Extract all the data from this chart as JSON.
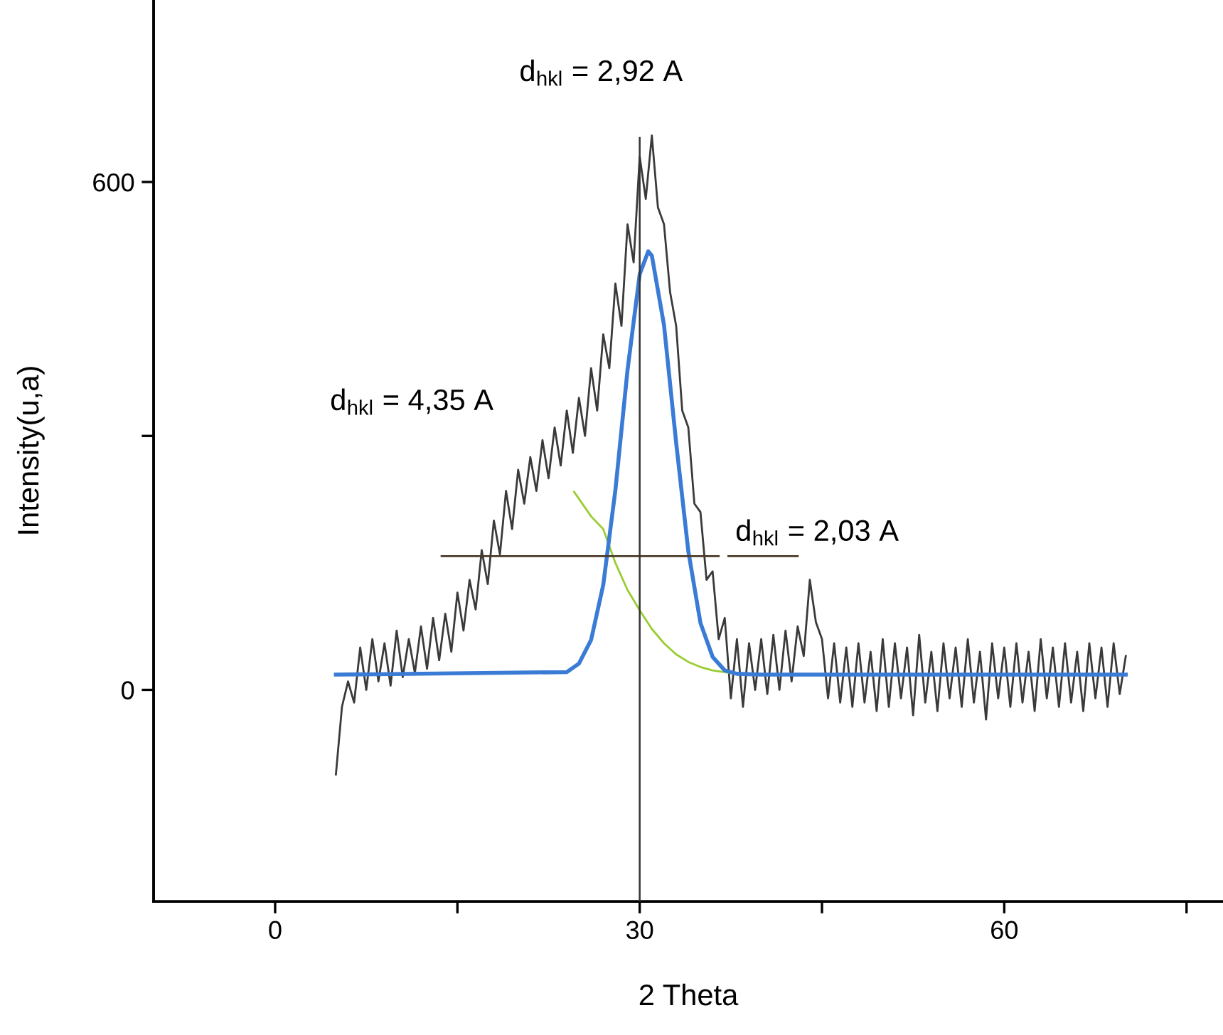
{
  "chart_data": {
    "type": "line",
    "xlabel": "2 Theta",
    "ylabel": "Intensity(u,a)",
    "xlim": [
      -10,
      78
    ],
    "ylim": [
      -250,
      815
    ],
    "xticks": [
      0,
      {
        "value": 15,
        "label": null
      },
      30,
      {
        "value": 45,
        "label": null
      },
      60,
      {
        "value": 75,
        "label": null
      }
    ],
    "yticks": [
      0,
      {
        "value": 300,
        "label": null
      },
      600
    ],
    "grid": false,
    "legend": false,
    "marker": "none",
    "line_style": "solid",
    "annotations": [
      "d$_{hkl}$ = 2,92 A",
      "d$_{hkl}$ = 4,35 A",
      "d$_{hkl}$ = 2,03 A"
    ],
    "series": [
      {
        "color": "#3a3a3a",
        "x": [
          5,
          5.5,
          6,
          6.5,
          7,
          7.5,
          8,
          8.5,
          9,
          9.5,
          10,
          10.5,
          11,
          11.5,
          12,
          12.5,
          13,
          13.5,
          14,
          14.5,
          15,
          15.5,
          16,
          16.5,
          17,
          17.5,
          18,
          18.5,
          19,
          19.5,
          20,
          20.5,
          21,
          21.5,
          22,
          22.5,
          23,
          23.5,
          24,
          24.5,
          25,
          25.5,
          26,
          26.5,
          27,
          27.5,
          28,
          28.5,
          29,
          29.5,
          30,
          30.5,
          31,
          31.5,
          32,
          32.5,
          33,
          33.5,
          34,
          34.5,
          35,
          35.5,
          36,
          36.5,
          37,
          37.5,
          38,
          38.5,
          39,
          39.5,
          40,
          40.5,
          41,
          41.5,
          42,
          42.5,
          43,
          43.5,
          44,
          44.5,
          45,
          45.5,
          46,
          46.5,
          47,
          47.5,
          48,
          48.5,
          49,
          49.5,
          50,
          50.5,
          51,
          51.5,
          52,
          52.5,
          53,
          53.5,
          54,
          54.5,
          55,
          55.5,
          56,
          56.5,
          57,
          57.5,
          58,
          58.5,
          59,
          59.5,
          60,
          60.5,
          61,
          61.5,
          62,
          62.5,
          63,
          63.5,
          64,
          64.5,
          65,
          65.5,
          66,
          66.5,
          67,
          67.5,
          68,
          68.5,
          69,
          69.5,
          70
        ],
        "values": [
          -100,
          -20,
          10,
          -15,
          50,
          0,
          60,
          10,
          55,
          5,
          70,
          15,
          60,
          20,
          75,
          25,
          85,
          35,
          90,
          45,
          115,
          70,
          130,
          95,
          165,
          125,
          200,
          160,
          235,
          190,
          260,
          220,
          275,
          235,
          295,
          250,
          310,
          265,
          330,
          280,
          345,
          300,
          380,
          330,
          420,
          380,
          480,
          430,
          550,
          505,
          630,
          580,
          655,
          570,
          550,
          470,
          430,
          330,
          310,
          220,
          210,
          130,
          140,
          60,
          85,
          -10,
          60,
          -20,
          55,
          0,
          60,
          -5,
          65,
          0,
          70,
          10,
          75,
          40,
          130,
          80,
          60,
          -10,
          55,
          -15,
          50,
          -20,
          55,
          -15,
          45,
          -25,
          60,
          -20,
          55,
          -10,
          50,
          -30,
          65,
          -15,
          45,
          -25,
          55,
          -10,
          50,
          -20,
          60,
          -15,
          45,
          -35,
          55,
          -10,
          50,
          -20,
          55,
          -15,
          45,
          -25,
          60,
          -10,
          50,
          -20,
          55,
          -15,
          45,
          -25,
          55,
          -10,
          50,
          -20,
          55,
          -5,
          40
        ]
      },
      {
        "color": "#9acd32",
        "x": [
          24.6,
          26,
          27,
          28,
          29,
          30,
          31,
          32,
          33,
          34,
          35,
          36,
          37.5
        ],
        "values": [
          234,
          205,
          190,
          150,
          118,
          94,
          72,
          55,
          42,
          33,
          27,
          23,
          20
        ]
      },
      {
        "color": "#3a7bd5",
        "x": [
          5,
          24,
          25,
          26,
          27,
          28,
          29,
          30,
          30.7,
          31,
          32,
          33,
          34,
          35,
          36,
          37,
          38,
          40,
          70
        ],
        "values": [
          18,
          21,
          31,
          59,
          124,
          236,
          378,
          491,
          518,
          513,
          431,
          292,
          164,
          79,
          39,
          23,
          19,
          18,
          18
        ]
      },
      {
        "color": "#4a3c28",
        "x": [
          13.7,
          36.5,
          36.8,
          37.3,
          43
        ],
        "values": [
          158,
          158,
          null,
          158,
          158
        ]
      },
      {
        "color": "#333333",
        "x": [
          30,
          30
        ],
        "values": [
          -250,
          652
        ]
      }
    ]
  }
}
